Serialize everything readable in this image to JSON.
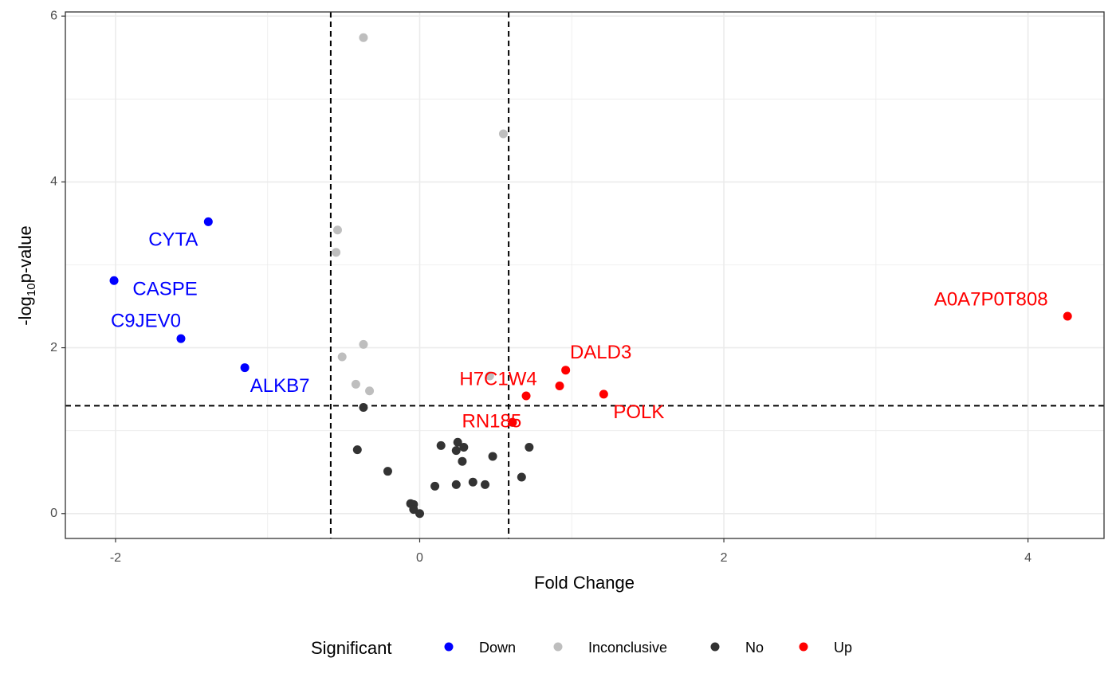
{
  "chart_data": {
    "type": "scatter",
    "title": "",
    "xlabel": "Fold Change",
    "ylabel_main": "-log",
    "ylabel_sub": "10",
    "ylabel_tail": "p-value",
    "xlim": [
      -2.33,
      4.5
    ],
    "ylim": [
      -0.3,
      6.05
    ],
    "x_ticks": [
      -2,
      0,
      2,
      4
    ],
    "y_ticks": [
      0,
      2,
      4,
      6
    ],
    "grid": true,
    "thresholds": {
      "x": [
        -0.585,
        0.585
      ],
      "y": 1.301
    },
    "legend": {
      "title": "Significant",
      "placement": "bottom",
      "entries": [
        {
          "name": "Down",
          "color": "#0000ff"
        },
        {
          "name": "Inconclusive",
          "color": "#bebebe"
        },
        {
          "name": "No",
          "color": "#333333"
        },
        {
          "name": "Up",
          "color": "#ff0000"
        }
      ]
    },
    "series": [
      {
        "name": "Down",
        "color": "#0000ff",
        "points": [
          {
            "x": -1.39,
            "y": 3.52,
            "label": "CYTA"
          },
          {
            "x": -2.01,
            "y": 2.81,
            "label": "CASPE"
          },
          {
            "x": -1.57,
            "y": 2.11,
            "label": "C9JEV0"
          },
          {
            "x": -1.15,
            "y": 1.76,
            "label": "ALKB7"
          }
        ]
      },
      {
        "name": "Inconclusive",
        "color": "#bebebe",
        "points": [
          {
            "x": -0.37,
            "y": 5.74
          },
          {
            "x": 0.55,
            "y": 4.58
          },
          {
            "x": -0.54,
            "y": 3.42
          },
          {
            "x": -0.55,
            "y": 3.15
          },
          {
            "x": -0.37,
            "y": 2.04
          },
          {
            "x": -0.51,
            "y": 1.89
          },
          {
            "x": -0.42,
            "y": 1.56
          },
          {
            "x": -0.33,
            "y": 1.48
          },
          {
            "x": 0.46,
            "y": 1.66
          }
        ]
      },
      {
        "name": "No",
        "color": "#333333",
        "points": [
          {
            "x": -0.37,
            "y": 1.28
          },
          {
            "x": 0.61,
            "y": 1.1
          },
          {
            "x": -0.41,
            "y": 0.77
          },
          {
            "x": -0.21,
            "y": 0.51
          },
          {
            "x": 0.14,
            "y": 0.82
          },
          {
            "x": 0.25,
            "y": 0.86
          },
          {
            "x": 0.24,
            "y": 0.76
          },
          {
            "x": 0.29,
            "y": 0.8
          },
          {
            "x": 0.28,
            "y": 0.63
          },
          {
            "x": 0.48,
            "y": 0.69
          },
          {
            "x": 0.72,
            "y": 0.8
          },
          {
            "x": 0.67,
            "y": 0.44
          },
          {
            "x": 0.35,
            "y": 0.38
          },
          {
            "x": 0.43,
            "y": 0.35
          },
          {
            "x": 0.24,
            "y": 0.35
          },
          {
            "x": 0.1,
            "y": 0.33
          },
          {
            "x": -0.06,
            "y": 0.12
          },
          {
            "x": -0.04,
            "y": 0.11
          },
          {
            "x": -0.04,
            "y": 0.05
          },
          {
            "x": 0.0,
            "y": 0.0
          }
        ]
      },
      {
        "name": "Up",
        "color": "#ff0000",
        "points": [
          {
            "x": 4.26,
            "y": 2.38,
            "label": "A0A7P0T808"
          },
          {
            "x": 0.96,
            "y": 1.73,
            "label": "DALD3"
          },
          {
            "x": 0.7,
            "y": 1.42,
            "label": "H7C1W4"
          },
          {
            "x": 0.92,
            "y": 1.54
          },
          {
            "x": 1.21,
            "y": 1.44,
            "label": "POLK"
          },
          {
            "x": 0.61,
            "y": 1.1,
            "label": "RN185"
          }
        ]
      }
    ]
  }
}
